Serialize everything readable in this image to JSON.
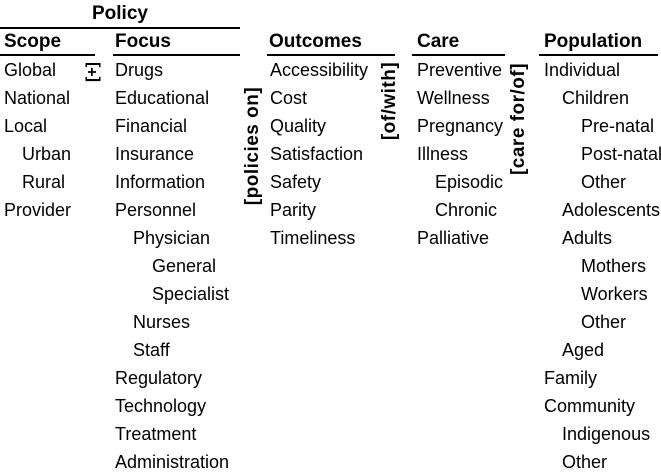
{
  "figure": {
    "background_color": "#ffffff",
    "text_color": "#000000"
  },
  "policy_group": {
    "label": "Policy"
  },
  "connectors": {
    "plus": "[+]",
    "policies_on": "[policies on]",
    "of_with": "[of/with]",
    "care_for_of": "[care for/of]"
  },
  "columns": [
    {
      "id": "scope",
      "header": "Scope",
      "items": [
        {
          "label": "Global",
          "indent": 0
        },
        {
          "label": "National",
          "indent": 0
        },
        {
          "label": "Local",
          "indent": 0
        },
        {
          "label": "Urban",
          "indent": 1
        },
        {
          "label": "Rural",
          "indent": 1
        },
        {
          "label": "Provider",
          "indent": 0
        }
      ]
    },
    {
      "id": "focus",
      "header": "Focus",
      "items": [
        {
          "label": "Drugs",
          "indent": 0
        },
        {
          "label": "Educational",
          "indent": 0
        },
        {
          "label": "Financial",
          "indent": 0
        },
        {
          "label": "Insurance",
          "indent": 0
        },
        {
          "label": "Information",
          "indent": 0
        },
        {
          "label": "Personnel",
          "indent": 0
        },
        {
          "label": "Physician",
          "indent": 1
        },
        {
          "label": "General",
          "indent": 2
        },
        {
          "label": "Specialist",
          "indent": 2
        },
        {
          "label": "Nurses",
          "indent": 1
        },
        {
          "label": "Staff",
          "indent": 1
        },
        {
          "label": "Regulatory",
          "indent": 0
        },
        {
          "label": "Technology",
          "indent": 0
        },
        {
          "label": "Treatment",
          "indent": 0
        },
        {
          "label": "Administration",
          "indent": 0
        }
      ]
    },
    {
      "id": "outcomes",
      "header": "Outcomes",
      "items": [
        {
          "label": "Accessibility",
          "indent": 0
        },
        {
          "label": "Cost",
          "indent": 0
        },
        {
          "label": "Quality",
          "indent": 0
        },
        {
          "label": "Satisfaction",
          "indent": 0
        },
        {
          "label": "Safety",
          "indent": 0
        },
        {
          "label": "Parity",
          "indent": 0
        },
        {
          "label": "Timeliness",
          "indent": 0
        }
      ]
    },
    {
      "id": "care",
      "header": "Care",
      "items": [
        {
          "label": "Preventive",
          "indent": 0
        },
        {
          "label": "Wellness",
          "indent": 0
        },
        {
          "label": "Pregnancy",
          "indent": 0
        },
        {
          "label": "Illness",
          "indent": 0
        },
        {
          "label": "Episodic",
          "indent": 1
        },
        {
          "label": "Chronic",
          "indent": 1
        },
        {
          "label": "Palliative",
          "indent": 0
        }
      ]
    },
    {
      "id": "population",
      "header": "Population",
      "items": [
        {
          "label": "Individual",
          "indent": 0
        },
        {
          "label": "Children",
          "indent": 1
        },
        {
          "label": "Pre-natal",
          "indent": 2
        },
        {
          "label": "Post-natal",
          "indent": 2
        },
        {
          "label": "Other",
          "indent": 2
        },
        {
          "label": "Adolescents",
          "indent": 1
        },
        {
          "label": "Adults",
          "indent": 1
        },
        {
          "label": "Mothers",
          "indent": 2
        },
        {
          "label": "Workers",
          "indent": 2
        },
        {
          "label": "Other",
          "indent": 2
        },
        {
          "label": "Aged",
          "indent": 1
        },
        {
          "label": "Family",
          "indent": 0
        },
        {
          "label": "Community",
          "indent": 0
        },
        {
          "label": "Indigenous",
          "indent": 1
        },
        {
          "label": "Other",
          "indent": 1
        }
      ]
    }
  ]
}
